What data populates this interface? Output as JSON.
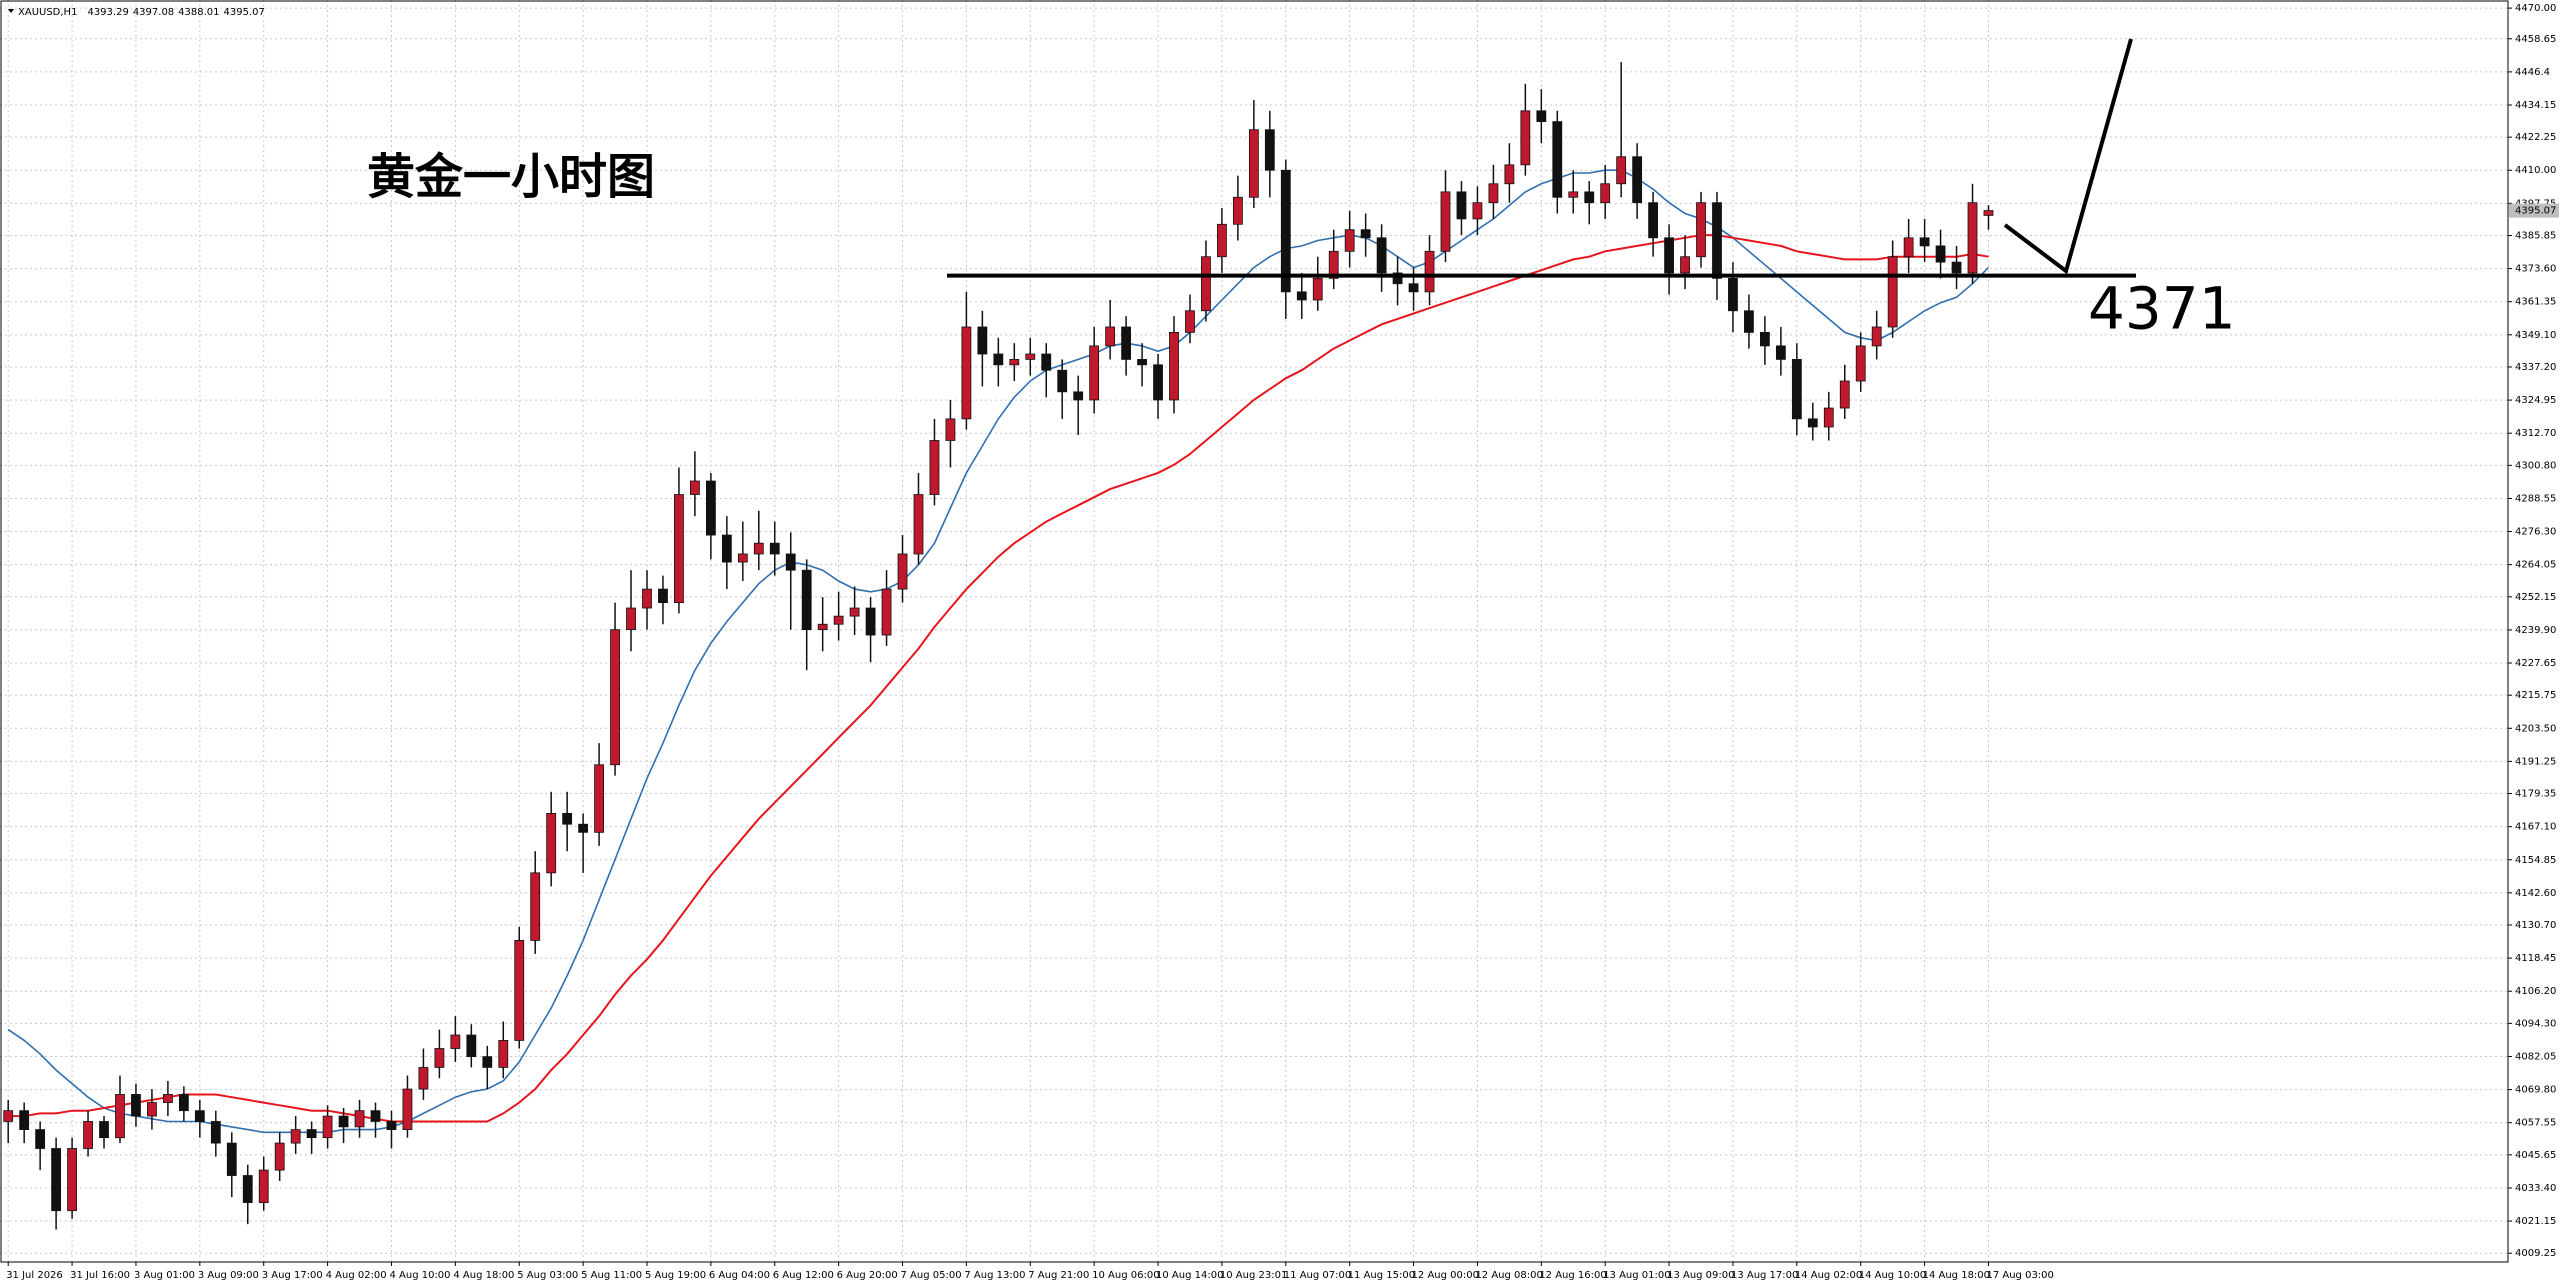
{
  "chart_data": {
    "type": "candlestick",
    "title": "XAUUSD,H1",
    "annotation_title": "黄金一小时图",
    "level": 4371,
    "up_color": "#c0192e",
    "down_color": "#111111",
    "grid": true,
    "ylim": [
      4006,
      4473
    ],
    "yticks": [
      {
        "value": 4470,
        "label": "4470.00"
      },
      4458.65,
      4446.4,
      4434.15,
      4422.25,
      {
        "value": 4410,
        "label": "4410.00"
      },
      4397.75,
      4385.85,
      {
        "value": 4373.6,
        "label": "4373.60"
      },
      4361.35,
      {
        "value": 4349.1,
        "label": "4349.10"
      },
      {
        "value": 4337.2,
        "label": "4337.20"
      },
      4324.95,
      {
        "value": 4312.7,
        "label": "4312.70"
      },
      {
        "value": 4300.8,
        "label": "4300.80"
      },
      4288.55,
      {
        "value": 4276.3,
        "label": "4276.30"
      },
      4264.05,
      4252.15,
      {
        "value": 4239.9,
        "label": "4239.90"
      },
      4227.65,
      4215.75,
      {
        "value": 4203.5,
        "label": "4203.50"
      },
      4191.25,
      4179.35,
      {
        "value": 4167.1,
        "label": "4167.10"
      },
      4154.85,
      {
        "value": 4142.6,
        "label": "4142.60"
      },
      {
        "value": 4130.7,
        "label": "4130.70"
      },
      4118.45,
      {
        "value": 4106.2,
        "label": "4106.20"
      },
      {
        "value": 4094.3,
        "label": "4094.30"
      },
      4082.05,
      {
        "value": 4069.8,
        "label": "4069.80"
      },
      4057.55,
      4045.65,
      {
        "value": 4033.4,
        "label": "4033.40"
      },
      4021.15,
      4009.25
    ],
    "categories": [
      "31 Jul 2026",
      null,
      null,
      null,
      "31 Jul 16:00",
      null,
      null,
      null,
      "3 Aug 01:00",
      null,
      null,
      null,
      "3 Aug 09:00",
      null,
      null,
      null,
      "3 Aug 17:00",
      null,
      null,
      null,
      "4 Aug 02:00",
      null,
      null,
      null,
      "4 Aug 10:00",
      null,
      null,
      null,
      "4 Aug 18:00",
      null,
      null,
      null,
      "5 Aug 03:00",
      null,
      null,
      null,
      "5 Aug 11:00",
      null,
      null,
      null,
      "5 Aug 19:00",
      null,
      null,
      null,
      "6 Aug 04:00",
      null,
      null,
      null,
      "6 Aug 12:00",
      null,
      null,
      null,
      "6 Aug 20:00",
      null,
      null,
      null,
      "7 Aug 05:00",
      null,
      null,
      null,
      "7 Aug 13:00",
      null,
      null,
      null,
      "7 Aug 21:00",
      null,
      null,
      null,
      "10 Aug 06:00",
      null,
      null,
      null,
      "10 Aug 14:00",
      null,
      null,
      null,
      "10 Aug 23:01",
      null,
      null,
      null,
      "11 Aug 07:00",
      null,
      null,
      null,
      "11 Aug 15:00",
      null,
      null,
      null,
      "12 Aug 00:00",
      null,
      null,
      null,
      "12 Aug 08:00",
      null,
      null,
      null,
      "12 Aug 16:00",
      null,
      null,
      null,
      "13 Aug 01:00",
      null,
      null,
      null,
      "13 Aug 09:00",
      null,
      null,
      null,
      "13 Aug 17:00",
      null,
      null,
      null,
      "14 Aug 02:00",
      null,
      null,
      null,
      "14 Aug 10:00",
      null,
      null,
      null,
      "14 Aug 18:00",
      null,
      null,
      null,
      "17 Aug 03:00"
    ],
    "ohlc": [
      [
        4058,
        4066,
        4050,
        4062
      ],
      [
        4062,
        4065,
        4050,
        4055
      ],
      [
        4055,
        4058,
        4040,
        4048
      ],
      [
        4048,
        4052,
        4018,
        4025
      ],
      [
        4025,
        4052,
        4022,
        4048
      ],
      [
        4048,
        4062,
        4045,
        4058
      ],
      [
        4058,
        4060,
        4048,
        4052
      ],
      [
        4052,
        4075,
        4050,
        4068
      ],
      [
        4068,
        4072,
        4056,
        4060
      ],
      [
        4060,
        4070,
        4055,
        4065
      ],
      [
        4065,
        4073,
        4060,
        4068
      ],
      [
        4068,
        4071,
        4058,
        4062
      ],
      [
        4062,
        4066,
        4052,
        4058
      ],
      [
        4058,
        4062,
        4045,
        4050
      ],
      [
        4050,
        4054,
        4030,
        4038
      ],
      [
        4038,
        4042,
        4020,
        4028
      ],
      [
        4028,
        4045,
        4025,
        4040
      ],
      [
        4040,
        4054,
        4036,
        4050
      ],
      [
        4050,
        4060,
        4046,
        4055
      ],
      [
        4055,
        4058,
        4046,
        4052
      ],
      [
        4052,
        4064,
        4048,
        4060
      ],
      [
        4060,
        4063,
        4050,
        4056
      ],
      [
        4056,
        4066,
        4052,
        4062
      ],
      [
        4062,
        4065,
        4052,
        4058
      ],
      [
        4058,
        4062,
        4048,
        4055
      ],
      [
        4055,
        4075,
        4052,
        4070
      ],
      [
        4070,
        4085,
        4066,
        4078
      ],
      [
        4078,
        4092,
        4074,
        4085
      ],
      [
        4085,
        4097,
        4080,
        4090
      ],
      [
        4090,
        4094,
        4078,
        4082
      ],
      [
        4082,
        4086,
        4070,
        4078
      ],
      [
        4078,
        4095,
        4074,
        4088
      ],
      [
        4088,
        4130,
        4085,
        4125
      ],
      [
        4125,
        4158,
        4120,
        4150
      ],
      [
        4150,
        4180,
        4145,
        4172
      ],
      [
        4172,
        4180,
        4158,
        4168
      ],
      [
        4168,
        4172,
        4150,
        4165
      ],
      [
        4165,
        4198,
        4160,
        4190
      ],
      [
        4190,
        4250,
        4186,
        4240
      ],
      [
        4240,
        4262,
        4232,
        4248
      ],
      [
        4248,
        4262,
        4240,
        4255
      ],
      [
        4255,
        4260,
        4242,
        4250
      ],
      [
        4250,
        4300,
        4246,
        4290
      ],
      [
        4290,
        4306,
        4282,
        4295
      ],
      [
        4295,
        4298,
        4266,
        4275
      ],
      [
        4275,
        4282,
        4255,
        4265
      ],
      [
        4265,
        4280,
        4258,
        4268
      ],
      [
        4268,
        4284,
        4262,
        4272
      ],
      [
        4272,
        4280,
        4260,
        4268
      ],
      [
        4268,
        4276,
        4240,
        4262
      ],
      [
        4262,
        4266,
        4225,
        4240
      ],
      [
        4240,
        4252,
        4232,
        4242
      ],
      [
        4242,
        4254,
        4236,
        4245
      ],
      [
        4245,
        4256,
        4238,
        4248
      ],
      [
        4248,
        4252,
        4228,
        4238
      ],
      [
        4238,
        4262,
        4234,
        4255
      ],
      [
        4255,
        4275,
        4250,
        4268
      ],
      [
        4268,
        4298,
        4264,
        4290
      ],
      [
        4290,
        4318,
        4286,
        4310
      ],
      [
        4310,
        4325,
        4300,
        4318
      ],
      [
        4318,
        4365,
        4314,
        4352
      ],
      [
        4352,
        4358,
        4330,
        4342
      ],
      [
        4342,
        4348,
        4330,
        4338
      ],
      [
        4338,
        4346,
        4332,
        4340
      ],
      [
        4340,
        4348,
        4334,
        4342
      ],
      [
        4342,
        4346,
        4326,
        4336
      ],
      [
        4336,
        4340,
        4318,
        4328
      ],
      [
        4328,
        4334,
        4312,
        4325
      ],
      [
        4325,
        4352,
        4320,
        4345
      ],
      [
        4345,
        4362,
        4340,
        4352
      ],
      [
        4352,
        4356,
        4334,
        4340
      ],
      [
        4340,
        4346,
        4330,
        4338
      ],
      [
        4338,
        4342,
        4318,
        4325
      ],
      [
        4325,
        4356,
        4320,
        4350
      ],
      [
        4350,
        4364,
        4346,
        4358
      ],
      [
        4358,
        4384,
        4354,
        4378
      ],
      [
        4378,
        4396,
        4372,
        4390
      ],
      [
        4390,
        4408,
        4384,
        4400
      ],
      [
        4400,
        4436,
        4396,
        4425
      ],
      [
        4425,
        4432,
        4400,
        4410
      ],
      [
        4410,
        4414,
        4355,
        4365
      ],
      [
        4365,
        4372,
        4355,
        4362
      ],
      [
        4362,
        4378,
        4358,
        4370
      ],
      [
        4370,
        4388,
        4366,
        4380
      ],
      [
        4380,
        4395,
        4374,
        4388
      ],
      [
        4388,
        4394,
        4378,
        4385
      ],
      [
        4385,
        4390,
        4365,
        4372
      ],
      [
        4372,
        4378,
        4360,
        4368
      ],
      [
        4368,
        4374,
        4358,
        4365
      ],
      [
        4365,
        4386,
        4360,
        4380
      ],
      [
        4380,
        4410,
        4376,
        4402
      ],
      [
        4402,
        4406,
        4386,
        4392
      ],
      [
        4392,
        4404,
        4386,
        4398
      ],
      [
        4398,
        4412,
        4392,
        4405
      ],
      [
        4405,
        4420,
        4398,
        4412
      ],
      [
        4412,
        4442,
        4408,
        4432
      ],
      [
        4432,
        4440,
        4420,
        4428
      ],
      [
        4428,
        4432,
        4394,
        4400
      ],
      [
        4400,
        4410,
        4394,
        4402
      ],
      [
        4402,
        4406,
        4390,
        4398
      ],
      [
        4398,
        4412,
        4392,
        4405
      ],
      [
        4405,
        4450,
        4400,
        4415
      ],
      [
        4415,
        4420,
        4392,
        4398
      ],
      [
        4398,
        4402,
        4378,
        4385
      ],
      [
        4385,
        4390,
        4364,
        4372
      ],
      [
        4372,
        4386,
        4366,
        4378
      ],
      [
        4378,
        4402,
        4374,
        4398
      ],
      [
        4398,
        4402,
        4362,
        4370
      ],
      [
        4370,
        4376,
        4350,
        4358
      ],
      [
        4358,
        4364,
        4344,
        4350
      ],
      [
        4350,
        4356,
        4338,
        4345
      ],
      [
        4345,
        4352,
        4334,
        4340
      ],
      [
        4340,
        4346,
        4312,
        4318
      ],
      [
        4318,
        4324,
        4310,
        4315
      ],
      [
        4315,
        4328,
        4310,
        4322
      ],
      [
        4322,
        4338,
        4318,
        4332
      ],
      [
        4332,
        4350,
        4328,
        4345
      ],
      [
        4345,
        4358,
        4340,
        4352
      ],
      [
        4352,
        4384,
        4348,
        4378
      ],
      [
        4378,
        4392,
        4372,
        4385
      ],
      [
        4385,
        4392,
        4376,
        4382
      ],
      [
        4382,
        4388,
        4370,
        4376
      ],
      [
        4376,
        4382,
        4366,
        4372
      ],
      [
        4372,
        4405,
        4368,
        4398
      ],
      [
        4393.29,
        4397.08,
        4388.01,
        4395.07
      ]
    ],
    "moving_averages": [
      {
        "color": "#2f6fb0",
        "values": [
          4092,
          4088,
          4083,
          4077,
          4072,
          4067,
          4063,
          4061,
          4060,
          4059,
          4058,
          4058,
          4058,
          4057,
          4056,
          4055,
          4054,
          4054,
          4054,
          4054,
          4054,
          4055,
          4055,
          4055,
          4056,
          4058,
          4061,
          4064,
          4067,
          4069,
          4070,
          4073,
          4080,
          4090,
          4100,
          4112,
          4125,
          4140,
          4155,
          4170,
          4185,
          4198,
          4212,
          4225,
          4235,
          4243,
          4250,
          4257,
          4262,
          4265,
          4264,
          4262,
          4258,
          4255,
          4254,
          4255,
          4258,
          4264,
          4272,
          4285,
          4298,
          4308,
          4318,
          4326,
          4332,
          4336,
          4338,
          4340,
          4342,
          4345,
          4346,
          4345,
          4343,
          4345,
          4350,
          4356,
          4362,
          4368,
          4374,
          4378,
          4381,
          4382,
          4384,
          4385,
          4386,
          4385,
          4382,
          4378,
          4374,
          4376,
          4380,
          4384,
          4388,
          4392,
          4397,
          4402,
          4405,
          4407,
          4409,
          4409,
          4410,
          4410,
          4407,
          4403,
          4398,
          4394,
          4392,
          4389,
          4385,
          4380,
          4375,
          4370,
          4365,
          4360,
          4355,
          4350,
          4348,
          4347,
          4350,
          4354,
          4358,
          4361,
          4363,
          4368,
          4374
        ]
      },
      {
        "color": "#e8141b",
        "values": [
          4060,
          4060,
          4061,
          4061,
          4062,
          4062,
          4063,
          4064,
          4065,
          4066,
          4067,
          4068,
          4068,
          4068,
          4067,
          4066,
          4065,
          4064,
          4063,
          4062,
          4062,
          4061,
          4060,
          4059,
          4058,
          4058,
          4058,
          4058,
          4058,
          4058,
          4058,
          4061,
          4065,
          4070,
          4077,
          4083,
          4090,
          4097,
          4105,
          4112,
          4118,
          4125,
          4133,
          4141,
          4149,
          4156,
          4163,
          4170,
          4176,
          4182,
          4188,
          4194,
          4200,
          4206,
          4212,
          4219,
          4226,
          4233,
          4241,
          4248,
          4255,
          4261,
          4267,
          4272,
          4276,
          4280,
          4283,
          4286,
          4289,
          4292,
          4294,
          4296,
          4298,
          4301,
          4305,
          4310,
          4315,
          4320,
          4325,
          4329,
          4333,
          4336,
          4340,
          4344,
          4347,
          4350,
          4353,
          4355,
          4357,
          4359,
          4361,
          4363,
          4365,
          4367,
          4369,
          4371,
          4373,
          4375,
          4377,
          4378,
          4380,
          4381,
          4382,
          4383,
          4384,
          4385,
          4386,
          4386,
          4385,
          4384,
          4383,
          4382,
          4380,
          4379,
          4378,
          4377,
          4377,
          4377,
          4378,
          4378,
          4378,
          4378,
          4378,
          4379,
          4378
        ]
      }
    ]
  }
}
